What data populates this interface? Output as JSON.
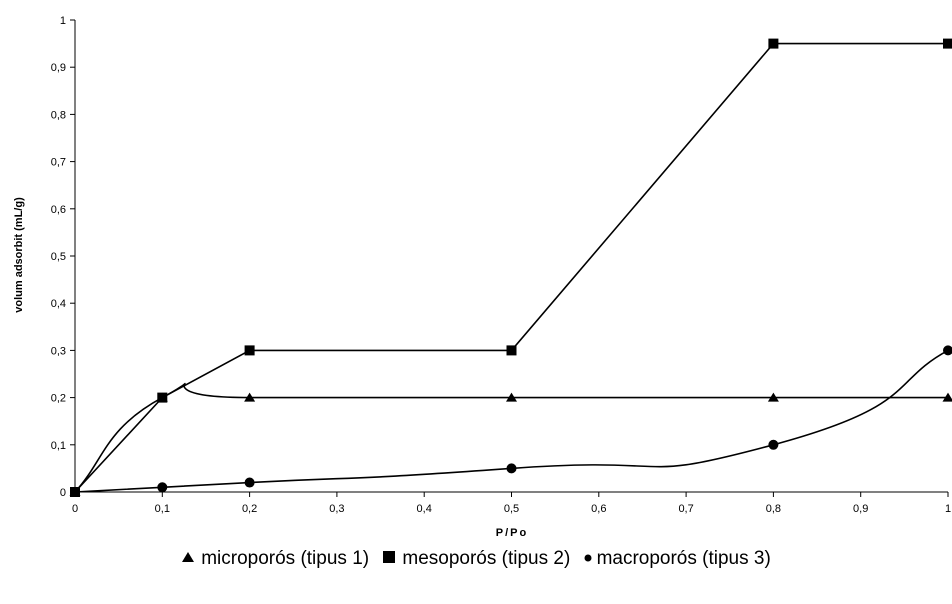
{
  "chart_data": {
    "type": "line",
    "title": "",
    "xlabel": "P/Po",
    "ylabel": "volum adsorbit (mL/g)",
    "xlim": [
      0,
      1
    ],
    "ylim": [
      0,
      1
    ],
    "xticks": [
      "0",
      "0,1",
      "0,2",
      "0,3",
      "0,4",
      "0,5",
      "0,6",
      "0,7",
      "0,8",
      "0,9",
      "1"
    ],
    "yticks": [
      "0",
      "0,1",
      "0,2",
      "0,3",
      "0,4",
      "0,5",
      "0,6",
      "0,7",
      "0,8",
      "0,9",
      "1"
    ],
    "grid": false,
    "legend_position": "bottom",
    "series": [
      {
        "name": "microporós (tipus 1)",
        "marker": "triangle",
        "line": "smooth",
        "x": [
          0,
          0.1,
          0.2,
          0.5,
          0.8,
          1.0
        ],
        "y": [
          0,
          0.2,
          0.2,
          0.2,
          0.2,
          0.2
        ]
      },
      {
        "name": "mesoporós (tipus 2)",
        "marker": "square",
        "line": "straight",
        "x": [
          0,
          0.1,
          0.2,
          0.5,
          0.8,
          1.0
        ],
        "y": [
          0,
          0.2,
          0.3,
          0.3,
          0.95,
          0.95
        ]
      },
      {
        "name": "macroporós (tipus 3)",
        "marker": "circle",
        "line": "smooth",
        "x": [
          0,
          0.1,
          0.2,
          0.5,
          0.8,
          1.0
        ],
        "y": [
          0,
          0.01,
          0.02,
          0.05,
          0.1,
          0.3
        ]
      }
    ],
    "color": "#000000"
  }
}
